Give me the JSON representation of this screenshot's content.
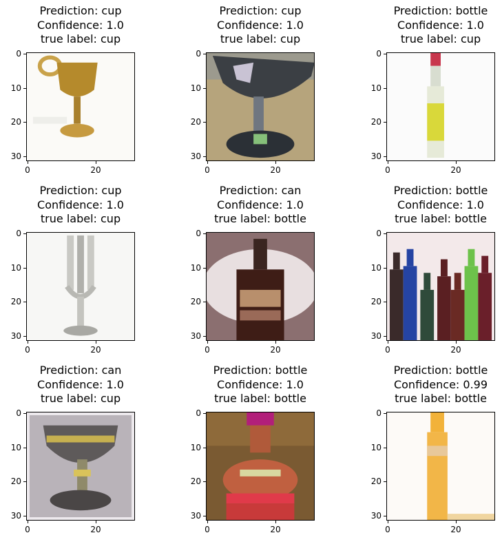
{
  "panels": [
    {
      "prediction": "Prediction: cup",
      "confidence": "Confidence: 1.0",
      "true_label": "true label: cup",
      "image": "gold-goblet"
    },
    {
      "prediction": "Prediction: cup",
      "confidence": "Confidence: 1.0",
      "true_label": "true label: cup",
      "image": "martini-glass"
    },
    {
      "prediction": "Prediction: bottle",
      "confidence": "Confidence: 1.0",
      "true_label": "true label: cup",
      "image": "white-bottle"
    },
    {
      "prediction": "Prediction: cup",
      "confidence": "Confidence: 1.0",
      "true_label": "true label: cup",
      "image": "silver-goblet"
    },
    {
      "prediction": "Prediction: can",
      "confidence": "Confidence: 1.0",
      "true_label": "true label: bottle",
      "image": "whisky-bottle"
    },
    {
      "prediction": "Prediction: bottle",
      "confidence": "Confidence: 1.0",
      "true_label": "true label: bottle",
      "image": "bottle-row"
    },
    {
      "prediction": "Prediction: can",
      "confidence": "Confidence: 1.0",
      "true_label": "true label: cup",
      "image": "trophy-cup"
    },
    {
      "prediction": "Prediction: bottle",
      "confidence": "Confidence: 1.0",
      "true_label": "true label: bottle",
      "image": "colorful-bottle"
    },
    {
      "prediction": "Prediction: bottle",
      "confidence": "Confidence: 0.99",
      "true_label": "true label: bottle",
      "image": "amber-bottle"
    }
  ],
  "axes": {
    "y_ticks": [
      "0",
      "10",
      "20",
      "30"
    ],
    "x_ticks": [
      "0",
      "20"
    ],
    "y_values": [
      0,
      10,
      20,
      30
    ],
    "x_values": [
      0,
      20
    ],
    "range": [
      -0.5,
      31.5
    ]
  }
}
